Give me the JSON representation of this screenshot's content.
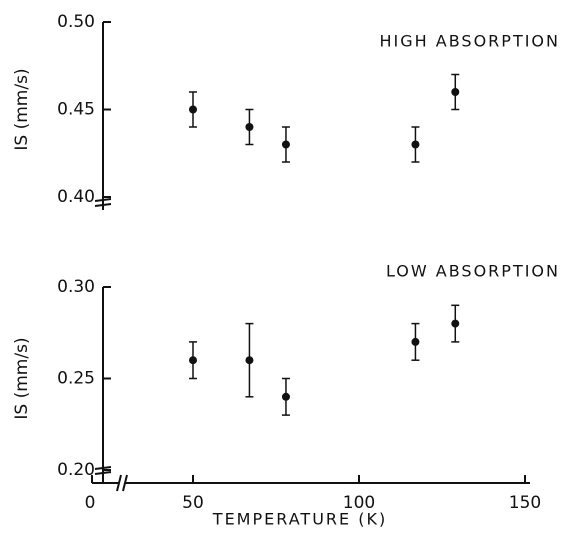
{
  "chart_data": [
    {
      "type": "scatter",
      "ylabel": "IS (mm/s)",
      "annotation": "HIGH ABSORPTION",
      "x": [
        50,
        67,
        78,
        117,
        129
      ],
      "series": [
        {
          "color": "#111111",
          "values": [
            0.45,
            0.44,
            0.43,
            0.43,
            0.46
          ],
          "errors": [
            0.01,
            0.01,
            0.01,
            0.01,
            0.01
          ]
        }
      ],
      "xlim": [
        0,
        150
      ],
      "ylim": [
        0.4,
        0.5
      ],
      "yticks": [
        {
          "value": 0.5,
          "label": "0.50"
        },
        0.45,
        {
          "value": 0.4,
          "label": "0.40"
        }
      ]
    },
    {
      "type": "scatter",
      "ylabel": "IS (mm/s)",
      "xlabel": "TEMPERATURE (K)",
      "annotation": "LOW ABSORPTION",
      "x": [
        50,
        67,
        78,
        117,
        129
      ],
      "series": [
        {
          "color": "#111111",
          "values": [
            0.26,
            0.26,
            0.24,
            0.27,
            0.28
          ],
          "errors": [
            0.01,
            0.02,
            0.01,
            0.01,
            0.01
          ]
        }
      ],
      "xlim": [
        0,
        150
      ],
      "xticks": [
        0,
        50,
        100,
        150
      ],
      "ylim": [
        0.2,
        0.3
      ],
      "yticks": [
        {
          "value": 0.3,
          "label": "0.30"
        },
        0.25,
        {
          "value": 0.2,
          "label": "0.20"
        }
      ]
    }
  ]
}
